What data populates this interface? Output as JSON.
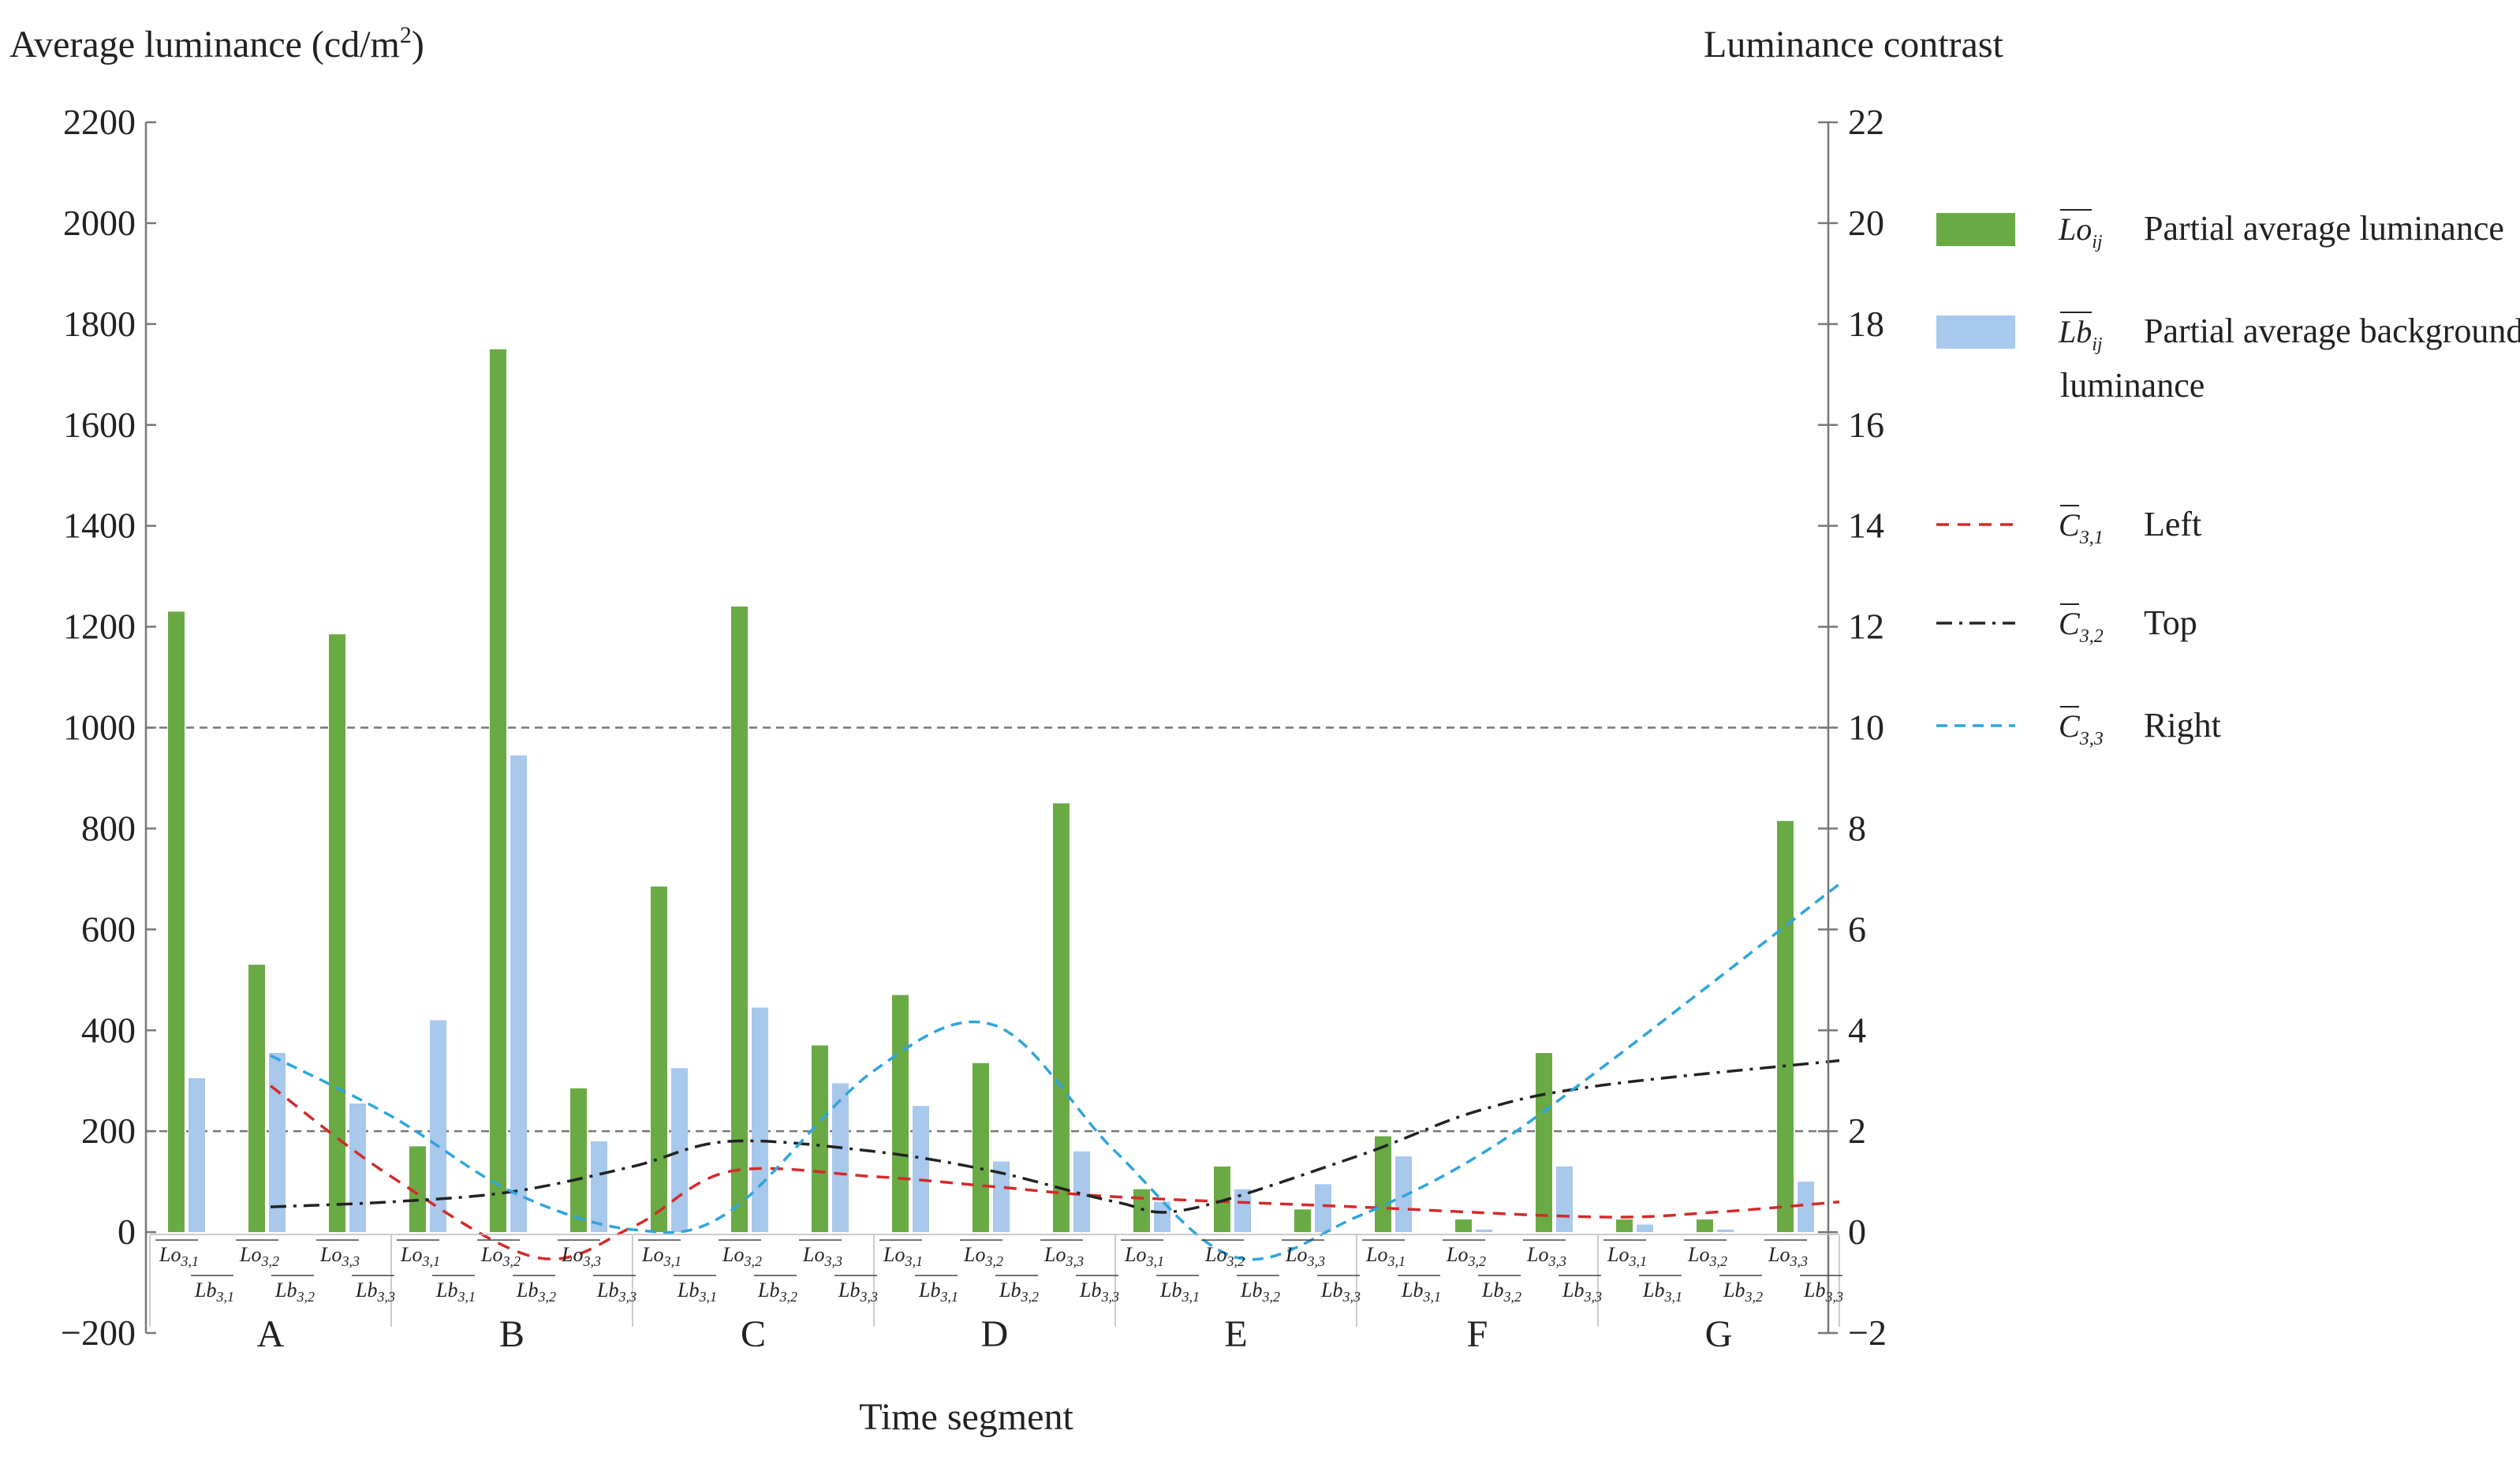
{
  "chart_data": {
    "type": "bar",
    "title": "",
    "xlabel": "Time segment",
    "ylabel": "Average luminance (cd/m²)",
    "ylabel_base": "Average luminance (cd/m",
    "ylabel_sup": "2",
    "ylabel_close": ")",
    "y2label": "Luminance contrast",
    "ylim": [
      -200,
      2200
    ],
    "y2lim": [
      -2,
      22
    ],
    "yticks": [
      "−200",
      "0",
      "200",
      "400",
      "600",
      "800",
      "1000",
      "1200",
      "1400",
      "1600",
      "1800",
      "2000",
      "2200"
    ],
    "y2ticks": [
      "−2",
      "0",
      "2",
      "4",
      "6",
      "8",
      "10",
      "12",
      "14",
      "16",
      "18",
      "20",
      "22"
    ],
    "reference_lines": [
      200,
      1000
    ],
    "groups": [
      "A",
      "B",
      "C",
      "D",
      "E",
      "F",
      "G"
    ],
    "sub_lo": [
      "Lo",
      "3,1",
      "3,2",
      "3,3"
    ],
    "sub_lb": [
      "Lb",
      "3,1",
      "3,2",
      "3,3"
    ],
    "bar_series": [
      {
        "name": "Partial average luminance",
        "symbol": "Lo",
        "subscript": "ij",
        "color": "#6aaa45",
        "values": [
          1230,
          530,
          1185,
          170,
          1750,
          285,
          685,
          1240,
          370,
          470,
          335,
          850,
          85,
          130,
          45,
          190,
          25,
          355,
          25,
          25,
          815
        ]
      },
      {
        "name": "Partial average background luminance",
        "symbol": "Lb",
        "subscript": "ij",
        "color": "#a8c8ec",
        "values": [
          305,
          355,
          255,
          420,
          945,
          180,
          325,
          445,
          295,
          250,
          140,
          160,
          60,
          85,
          95,
          150,
          5,
          130,
          15,
          5,
          100
        ]
      }
    ],
    "line_series": [
      {
        "name": "Left",
        "symbol": "C",
        "subscript": "3,1",
        "color": "#d42a2a",
        "x": [
          0.5,
          1.0,
          1.6,
          2.0,
          2.4,
          3.0,
          3.5,
          4.0,
          5.0,
          6.0,
          6.5,
          7.0
        ],
        "values": [
          2.9,
          1.1,
          -0.5,
          0.1,
          1.2,
          1.1,
          0.9,
          0.7,
          0.5,
          0.3,
          0.4,
          0.6
        ]
      },
      {
        "name": "Top",
        "symbol": "C",
        "subscript": "3,2",
        "color": "#222222",
        "x": [
          0.5,
          1.0,
          1.5,
          2.0,
          2.4,
          3.0,
          3.5,
          4.0,
          4.3,
          5.0,
          5.5,
          6.0,
          7.0
        ],
        "values": [
          0.5,
          0.6,
          0.8,
          1.3,
          1.8,
          1.6,
          1.2,
          0.6,
          0.45,
          1.5,
          2.4,
          2.9,
          3.4
        ]
      },
      {
        "name": "Right",
        "symbol": "C",
        "subscript": "3,3",
        "color": "#2ea5dc",
        "x": [
          0.5,
          1.0,
          1.5,
          2.0,
          2.4,
          3.0,
          3.5,
          4.0,
          4.5,
          5.0,
          5.5,
          6.0,
          7.0
        ],
        "values": [
          3.5,
          2.3,
          0.8,
          0.05,
          0.4,
          3.2,
          4.1,
          1.6,
          -0.5,
          0.3,
          1.5,
          3.2,
          6.9
        ]
      }
    ],
    "legend": {
      "placement": "right",
      "items": [
        {
          "symbol": "Lo",
          "subscript": "ij",
          "label": "Partial average luminance"
        },
        {
          "symbol": "Lb",
          "subscript": "ij",
          "label": "Partial average background",
          "label2": "luminance"
        },
        {
          "symbol": "C",
          "subscript": "3,1",
          "label": "Left"
        },
        {
          "symbol": "C",
          "subscript": "3,2",
          "label": "Top"
        },
        {
          "symbol": "C",
          "subscript": "3,3",
          "label": "Right"
        }
      ]
    }
  }
}
